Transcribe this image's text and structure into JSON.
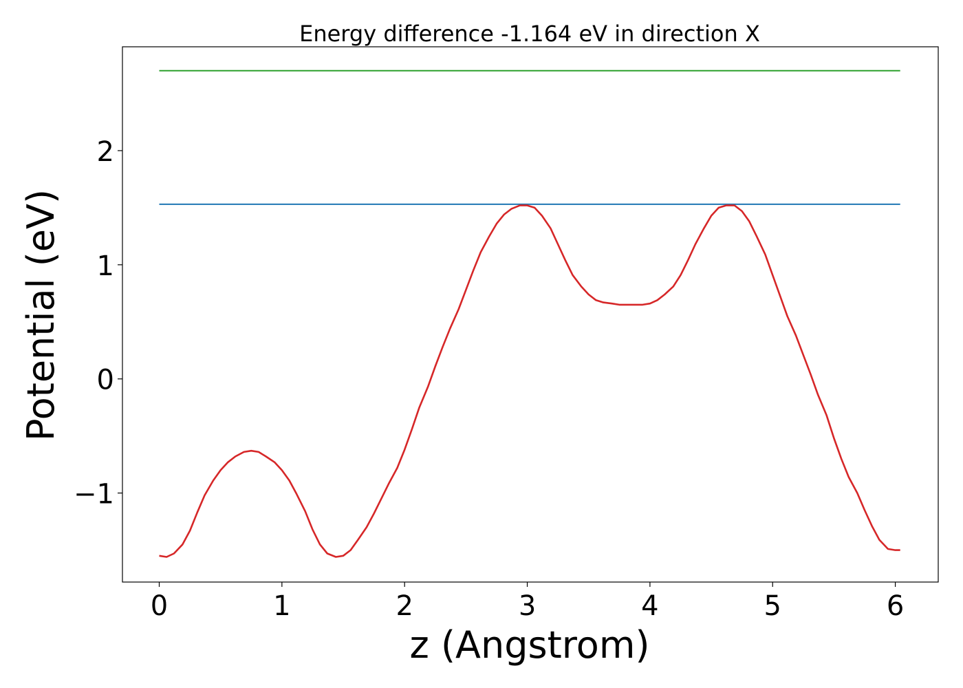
{
  "chart_data": {
    "type": "line",
    "title": "Energy difference -1.164 eV in direction X",
    "xlabel": "z (Angstrom)",
    "ylabel": "Potential (eV)",
    "xlim": [
      -0.3,
      6.35
    ],
    "ylim": [
      -1.78,
      2.91
    ],
    "xticks": [
      0,
      1,
      2,
      3,
      4,
      5,
      6
    ],
    "xtick_labels": [
      "0",
      "1",
      "2",
      "3",
      "4",
      "5",
      "6"
    ],
    "yticks": [
      -1,
      0,
      1,
      2
    ],
    "ytick_labels": [
      "−1",
      "0",
      "1",
      "2"
    ],
    "grid": false,
    "legend": "none",
    "series": [
      {
        "color": "#2ca02c",
        "x": [
          0,
          6.04
        ],
        "y": [
          2.7,
          2.7
        ]
      },
      {
        "color": "#1f77b4",
        "x": [
          0,
          6.04
        ],
        "y": [
          1.53,
          1.53
        ]
      },
      {
        "color": "#d62728",
        "x": [
          0,
          0.06,
          0.12,
          0.19,
          0.25,
          0.31,
          0.37,
          0.44,
          0.5,
          0.56,
          0.62,
          0.69,
          0.75,
          0.81,
          0.87,
          0.94,
          1.0,
          1.06,
          1.12,
          1.19,
          1.25,
          1.31,
          1.37,
          1.44,
          1.5,
          1.56,
          1.62,
          1.69,
          1.75,
          1.81,
          1.87,
          1.94,
          2.0,
          2.06,
          2.12,
          2.19,
          2.25,
          2.31,
          2.37,
          2.44,
          2.5,
          2.56,
          2.62,
          2.69,
          2.75,
          2.81,
          2.87,
          2.94,
          3.0,
          3.06,
          3.12,
          3.19,
          3.25,
          3.31,
          3.37,
          3.44,
          3.5,
          3.56,
          3.62,
          3.69,
          3.75,
          3.81,
          3.87,
          3.94,
          4.0,
          4.06,
          4.12,
          4.19,
          4.25,
          4.31,
          4.37,
          4.44,
          4.5,
          4.56,
          4.62,
          4.69,
          4.75,
          4.81,
          4.87,
          4.94,
          5.0,
          5.06,
          5.12,
          5.19,
          5.25,
          5.31,
          5.37,
          5.44,
          5.5,
          5.56,
          5.62,
          5.69,
          5.75,
          5.81,
          5.87,
          5.94,
          6.0,
          6.04
        ],
        "y": [
          -1.55,
          -1.56,
          -1.53,
          -1.45,
          -1.33,
          -1.17,
          -1.02,
          -0.89,
          -0.8,
          -0.73,
          -0.68,
          -0.64,
          -0.63,
          -0.64,
          -0.68,
          -0.73,
          -0.8,
          -0.89,
          -1.01,
          -1.16,
          -1.32,
          -1.45,
          -1.53,
          -1.56,
          -1.55,
          -1.5,
          -1.41,
          -1.3,
          -1.18,
          -1.05,
          -0.92,
          -0.78,
          -0.62,
          -0.44,
          -0.25,
          -0.07,
          0.11,
          0.28,
          0.44,
          0.61,
          0.78,
          0.95,
          1.11,
          1.25,
          1.36,
          1.44,
          1.49,
          1.52,
          1.52,
          1.5,
          1.43,
          1.32,
          1.18,
          1.04,
          0.91,
          0.81,
          0.74,
          0.69,
          0.67,
          0.66,
          0.65,
          0.65,
          0.65,
          0.65,
          0.66,
          0.69,
          0.74,
          0.81,
          0.91,
          1.04,
          1.18,
          1.32,
          1.43,
          1.5,
          1.52,
          1.52,
          1.47,
          1.38,
          1.25,
          1.09,
          0.91,
          0.73,
          0.55,
          0.38,
          0.21,
          0.04,
          -0.14,
          -0.32,
          -0.52,
          -0.7,
          -0.86,
          -1.0,
          -1.15,
          -1.29,
          -1.41,
          -1.49,
          -1.5,
          -1.5
        ]
      }
    ]
  }
}
